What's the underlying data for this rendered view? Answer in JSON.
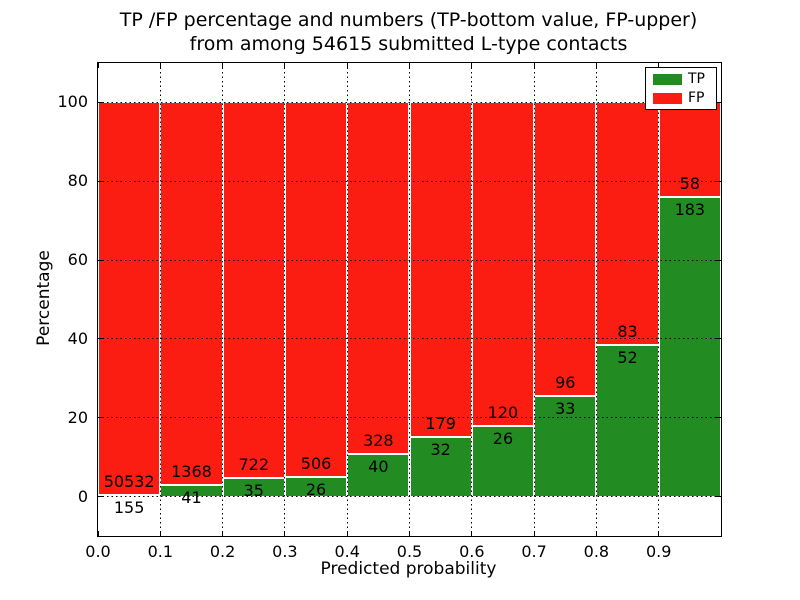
{
  "header": {
    "title_line1": "TP /FP percentage and numbers (TP-bottom value, FP-upper)",
    "title_line2": "from among 54615 submitted L-type contacts"
  },
  "chart_data": {
    "type": "bar",
    "stacked": true,
    "orientation": "vertical",
    "title": "TP /FP percentage and numbers (TP-bottom value, FP-upper) from among 54615 submitted L-type contacts",
    "xlabel": "Predicted probability",
    "ylabel": "Percentage",
    "total_submitted": 54615,
    "bin_edges": [
      0.0,
      0.1,
      0.2,
      0.3,
      0.4,
      0.5,
      0.6,
      0.7,
      0.8,
      0.9,
      1.0
    ],
    "x_tick_labels": [
      "0.0",
      "0.1",
      "0.2",
      "0.3",
      "0.4",
      "0.5",
      "0.6",
      "0.7",
      "0.8",
      "0.9"
    ],
    "y_ticks": [
      0,
      20,
      40,
      60,
      80,
      100
    ],
    "xlim": [
      0.0,
      1.0
    ],
    "ylim": [
      -10,
      110
    ],
    "grid": "dotted",
    "legend": {
      "position": "upper right",
      "entries": [
        "TP",
        "FP"
      ]
    },
    "series": [
      {
        "name": "TP",
        "color": "#228b22",
        "counts": [
          155,
          41,
          35,
          26,
          40,
          32,
          26,
          33,
          52,
          183
        ]
      },
      {
        "name": "FP",
        "color": "#fb1c12",
        "counts": [
          50532,
          1368,
          722,
          506,
          328,
          179,
          120,
          96,
          83,
          58
        ]
      }
    ],
    "tp_percent": [
      0.31,
      2.91,
      4.62,
      4.89,
      10.87,
      15.17,
      17.81,
      25.58,
      38.52,
      75.93
    ]
  },
  "colors": {
    "tp_green": "#228b22",
    "fp_red": "#fb1c12",
    "grid": "#000000",
    "text": "#000000",
    "background": "#ffffff"
  }
}
